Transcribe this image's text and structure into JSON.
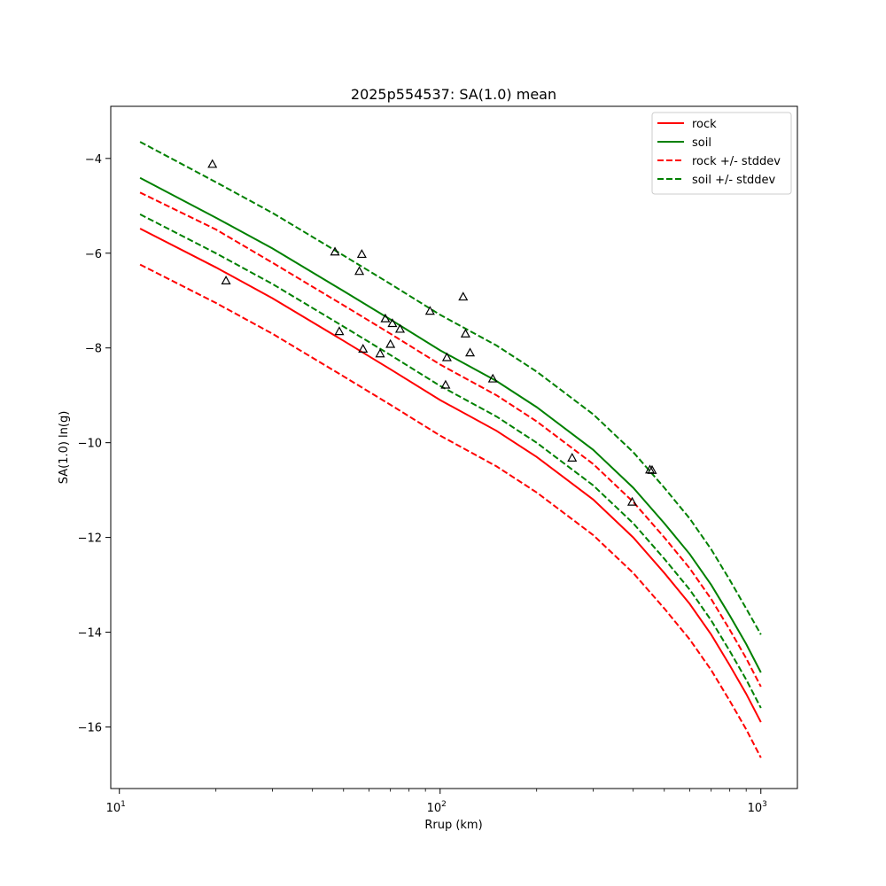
{
  "chart_data": {
    "type": "line",
    "title": "2025p554537: SA(1.0) mean",
    "xlabel": "Rrup (km)",
    "ylabel": "SA(1.0) ln(g)",
    "xscale": "log",
    "xlim": [
      9.4,
      1300
    ],
    "ylim": [
      -17.3,
      -2.9
    ],
    "xticks": [
      {
        "value": 10,
        "base": "10",
        "exp": "1"
      },
      {
        "value": 100,
        "base": "10",
        "exp": "2"
      },
      {
        "value": 1000,
        "base": "10",
        "exp": "3"
      }
    ],
    "yticks": [
      -4,
      -6,
      -8,
      -10,
      -12,
      -14,
      -16
    ],
    "ytick_labels": [
      "−4",
      "−6",
      "−8",
      "−10",
      "−12",
      "−14",
      "−16"
    ],
    "grid": false,
    "legend_position": "top-right",
    "colors": {
      "rock": "#ff0000",
      "soil": "#008000",
      "marker": "#000000"
    },
    "series": [
      {
        "name": "rock",
        "color": "#ff0000",
        "dash": false,
        "x": [
          11.6,
          20,
          30,
          50,
          70,
          100,
          150,
          200,
          300,
          400,
          500,
          600,
          700,
          800,
          900,
          1000
        ],
        "y": [
          -5.48,
          -6.3,
          -6.95,
          -7.85,
          -8.45,
          -9.1,
          -9.75,
          -10.3,
          -11.2,
          -12.0,
          -12.75,
          -13.4,
          -14.05,
          -14.7,
          -15.3,
          -15.9
        ]
      },
      {
        "name": "soil",
        "color": "#008000",
        "dash": false,
        "x": [
          11.6,
          20,
          30,
          50,
          70,
          100,
          150,
          200,
          300,
          400,
          500,
          600,
          700,
          800,
          900,
          1000
        ],
        "y": [
          -4.41,
          -5.25,
          -5.9,
          -6.8,
          -7.4,
          -8.05,
          -8.7,
          -9.25,
          -10.15,
          -10.95,
          -11.7,
          -12.35,
          -13.0,
          -13.65,
          -14.25,
          -14.85
        ]
      },
      {
        "name": "rock +/- stddev",
        "color": "#ff0000",
        "dash": true,
        "x": [
          11.6,
          20,
          30,
          50,
          70,
          100,
          150,
          200,
          300,
          400,
          500,
          600,
          700,
          800,
          900,
          1000
        ],
        "y": [
          -4.72,
          -5.5,
          -6.2,
          -7.1,
          -7.7,
          -8.35,
          -9.0,
          -9.55,
          -10.45,
          -11.25,
          -12.0,
          -12.65,
          -13.3,
          -13.95,
          -14.55,
          -15.15
        ]
      },
      {
        "name": "",
        "color": "#ff0000",
        "dash": true,
        "x": [
          11.6,
          20,
          30,
          50,
          70,
          100,
          150,
          200,
          300,
          400,
          500,
          600,
          700,
          800,
          900,
          1000
        ],
        "y": [
          -6.24,
          -7.05,
          -7.7,
          -8.6,
          -9.2,
          -9.85,
          -10.5,
          -11.05,
          -11.95,
          -12.75,
          -13.5,
          -14.15,
          -14.8,
          -15.45,
          -16.05,
          -16.65
        ]
      },
      {
        "name": "soil +/- stddev",
        "color": "#008000",
        "dash": true,
        "x": [
          11.6,
          20,
          30,
          50,
          70,
          100,
          150,
          200,
          300,
          400,
          500,
          600,
          700,
          800,
          900,
          1000
        ],
        "y": [
          -3.65,
          -4.5,
          -5.15,
          -6.05,
          -6.65,
          -7.3,
          -7.95,
          -8.5,
          -9.4,
          -10.2,
          -10.95,
          -11.6,
          -12.25,
          -12.9,
          -13.5,
          -14.05
        ]
      },
      {
        "name": "",
        "color": "#008000",
        "dash": true,
        "x": [
          11.6,
          20,
          30,
          50,
          70,
          100,
          150,
          200,
          300,
          400,
          500,
          600,
          700,
          800,
          900,
          1000
        ],
        "y": [
          -5.18,
          -6.0,
          -6.65,
          -7.55,
          -8.15,
          -8.8,
          -9.45,
          -10.0,
          -10.9,
          -11.7,
          -12.45,
          -13.1,
          -13.75,
          -14.4,
          -15.0,
          -15.6
        ]
      }
    ],
    "observations": {
      "marker": "triangle-open",
      "points": [
        {
          "x": 19.5,
          "y": -4.12
        },
        {
          "x": 21.5,
          "y": -6.58
        },
        {
          "x": 47,
          "y": -5.97
        },
        {
          "x": 48.5,
          "y": -7.65
        },
        {
          "x": 56,
          "y": -6.38
        },
        {
          "x": 57,
          "y": -6.02
        },
        {
          "x": 57.5,
          "y": -8.02
        },
        {
          "x": 65,
          "y": -8.12
        },
        {
          "x": 67.5,
          "y": -7.38
        },
        {
          "x": 70,
          "y": -7.92
        },
        {
          "x": 71,
          "y": -7.48
        },
        {
          "x": 75,
          "y": -7.6
        },
        {
          "x": 93,
          "y": -7.22
        },
        {
          "x": 104,
          "y": -8.78
        },
        {
          "x": 105,
          "y": -8.2
        },
        {
          "x": 118,
          "y": -6.92
        },
        {
          "x": 120,
          "y": -7.7
        },
        {
          "x": 124,
          "y": -8.1
        },
        {
          "x": 146,
          "y": -8.65
        },
        {
          "x": 258,
          "y": -10.32
        },
        {
          "x": 397,
          "y": -11.25
        },
        {
          "x": 451,
          "y": -10.57
        },
        {
          "x": 458,
          "y": -10.58
        }
      ]
    }
  }
}
